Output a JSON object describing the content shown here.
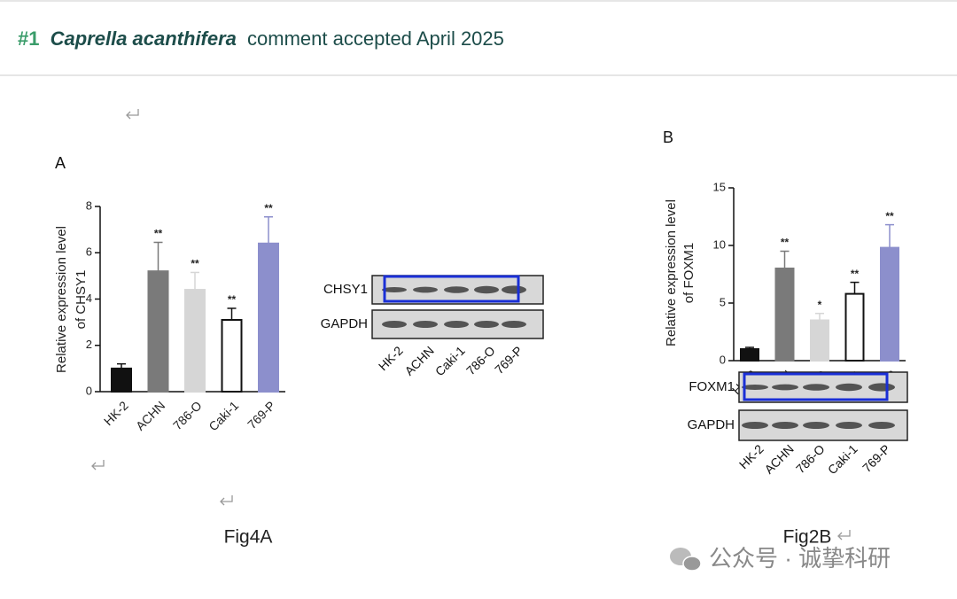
{
  "header": {
    "number": "#1",
    "species": "Caprella acanthifera",
    "text": "comment accepted April 2025"
  },
  "chart_data": [
    {
      "type": "bar",
      "panel": "A",
      "ylabel": [
        "Relative expression level",
        "of CHSY1"
      ],
      "categories": [
        "HK-2",
        "ACHN",
        "786-O",
        "Caki-1",
        "769-P"
      ],
      "values": [
        1,
        5.2,
        4.4,
        3.1,
        6.4
      ],
      "errors": [
        0.2,
        1.25,
        0.75,
        0.5,
        1.15
      ],
      "significance": [
        null,
        "**",
        "**",
        "**",
        "**"
      ],
      "colors": [
        "#111111",
        "#7a7a7a",
        "#d6d6d6",
        "#ffffff",
        "#8c8fcc"
      ],
      "ylim": [
        0,
        8
      ],
      "yticks": [
        0,
        2,
        4,
        6,
        8
      ]
    },
    {
      "type": "bar",
      "panel": "B",
      "ylabel": [
        "Relative expression level",
        "of FOXM1"
      ],
      "categories": [
        "HK-2",
        "ACHN",
        "786-O",
        "Caki-1",
        "769-P"
      ],
      "values": [
        1,
        8,
        3.5,
        5.8,
        9.8
      ],
      "errors": [
        0.15,
        1.5,
        0.6,
        1.0,
        2.0
      ],
      "significance": [
        null,
        "**",
        "*",
        "**",
        "**"
      ],
      "colors": [
        "#111111",
        "#7a7a7a",
        "#d6d6d6",
        "#ffffff",
        "#8c8fcc"
      ],
      "ylim": [
        0,
        15
      ],
      "yticks": [
        0,
        5,
        10,
        15
      ]
    }
  ],
  "blots": [
    {
      "rows": [
        "CHSY1",
        "GAPDH"
      ],
      "lanes": [
        "HK-2",
        "ACHN",
        "Caki-1",
        "786-O",
        "769-P"
      ]
    },
    {
      "rows": [
        "FOXM1",
        "GAPDH"
      ],
      "lanes": [
        "HK-2",
        "ACHN",
        "786-O",
        "Caki-1",
        "769-P"
      ]
    }
  ],
  "captions": [
    "Fig4A",
    "Fig2B"
  ],
  "watermark": "公众号 · 诚挚科研"
}
